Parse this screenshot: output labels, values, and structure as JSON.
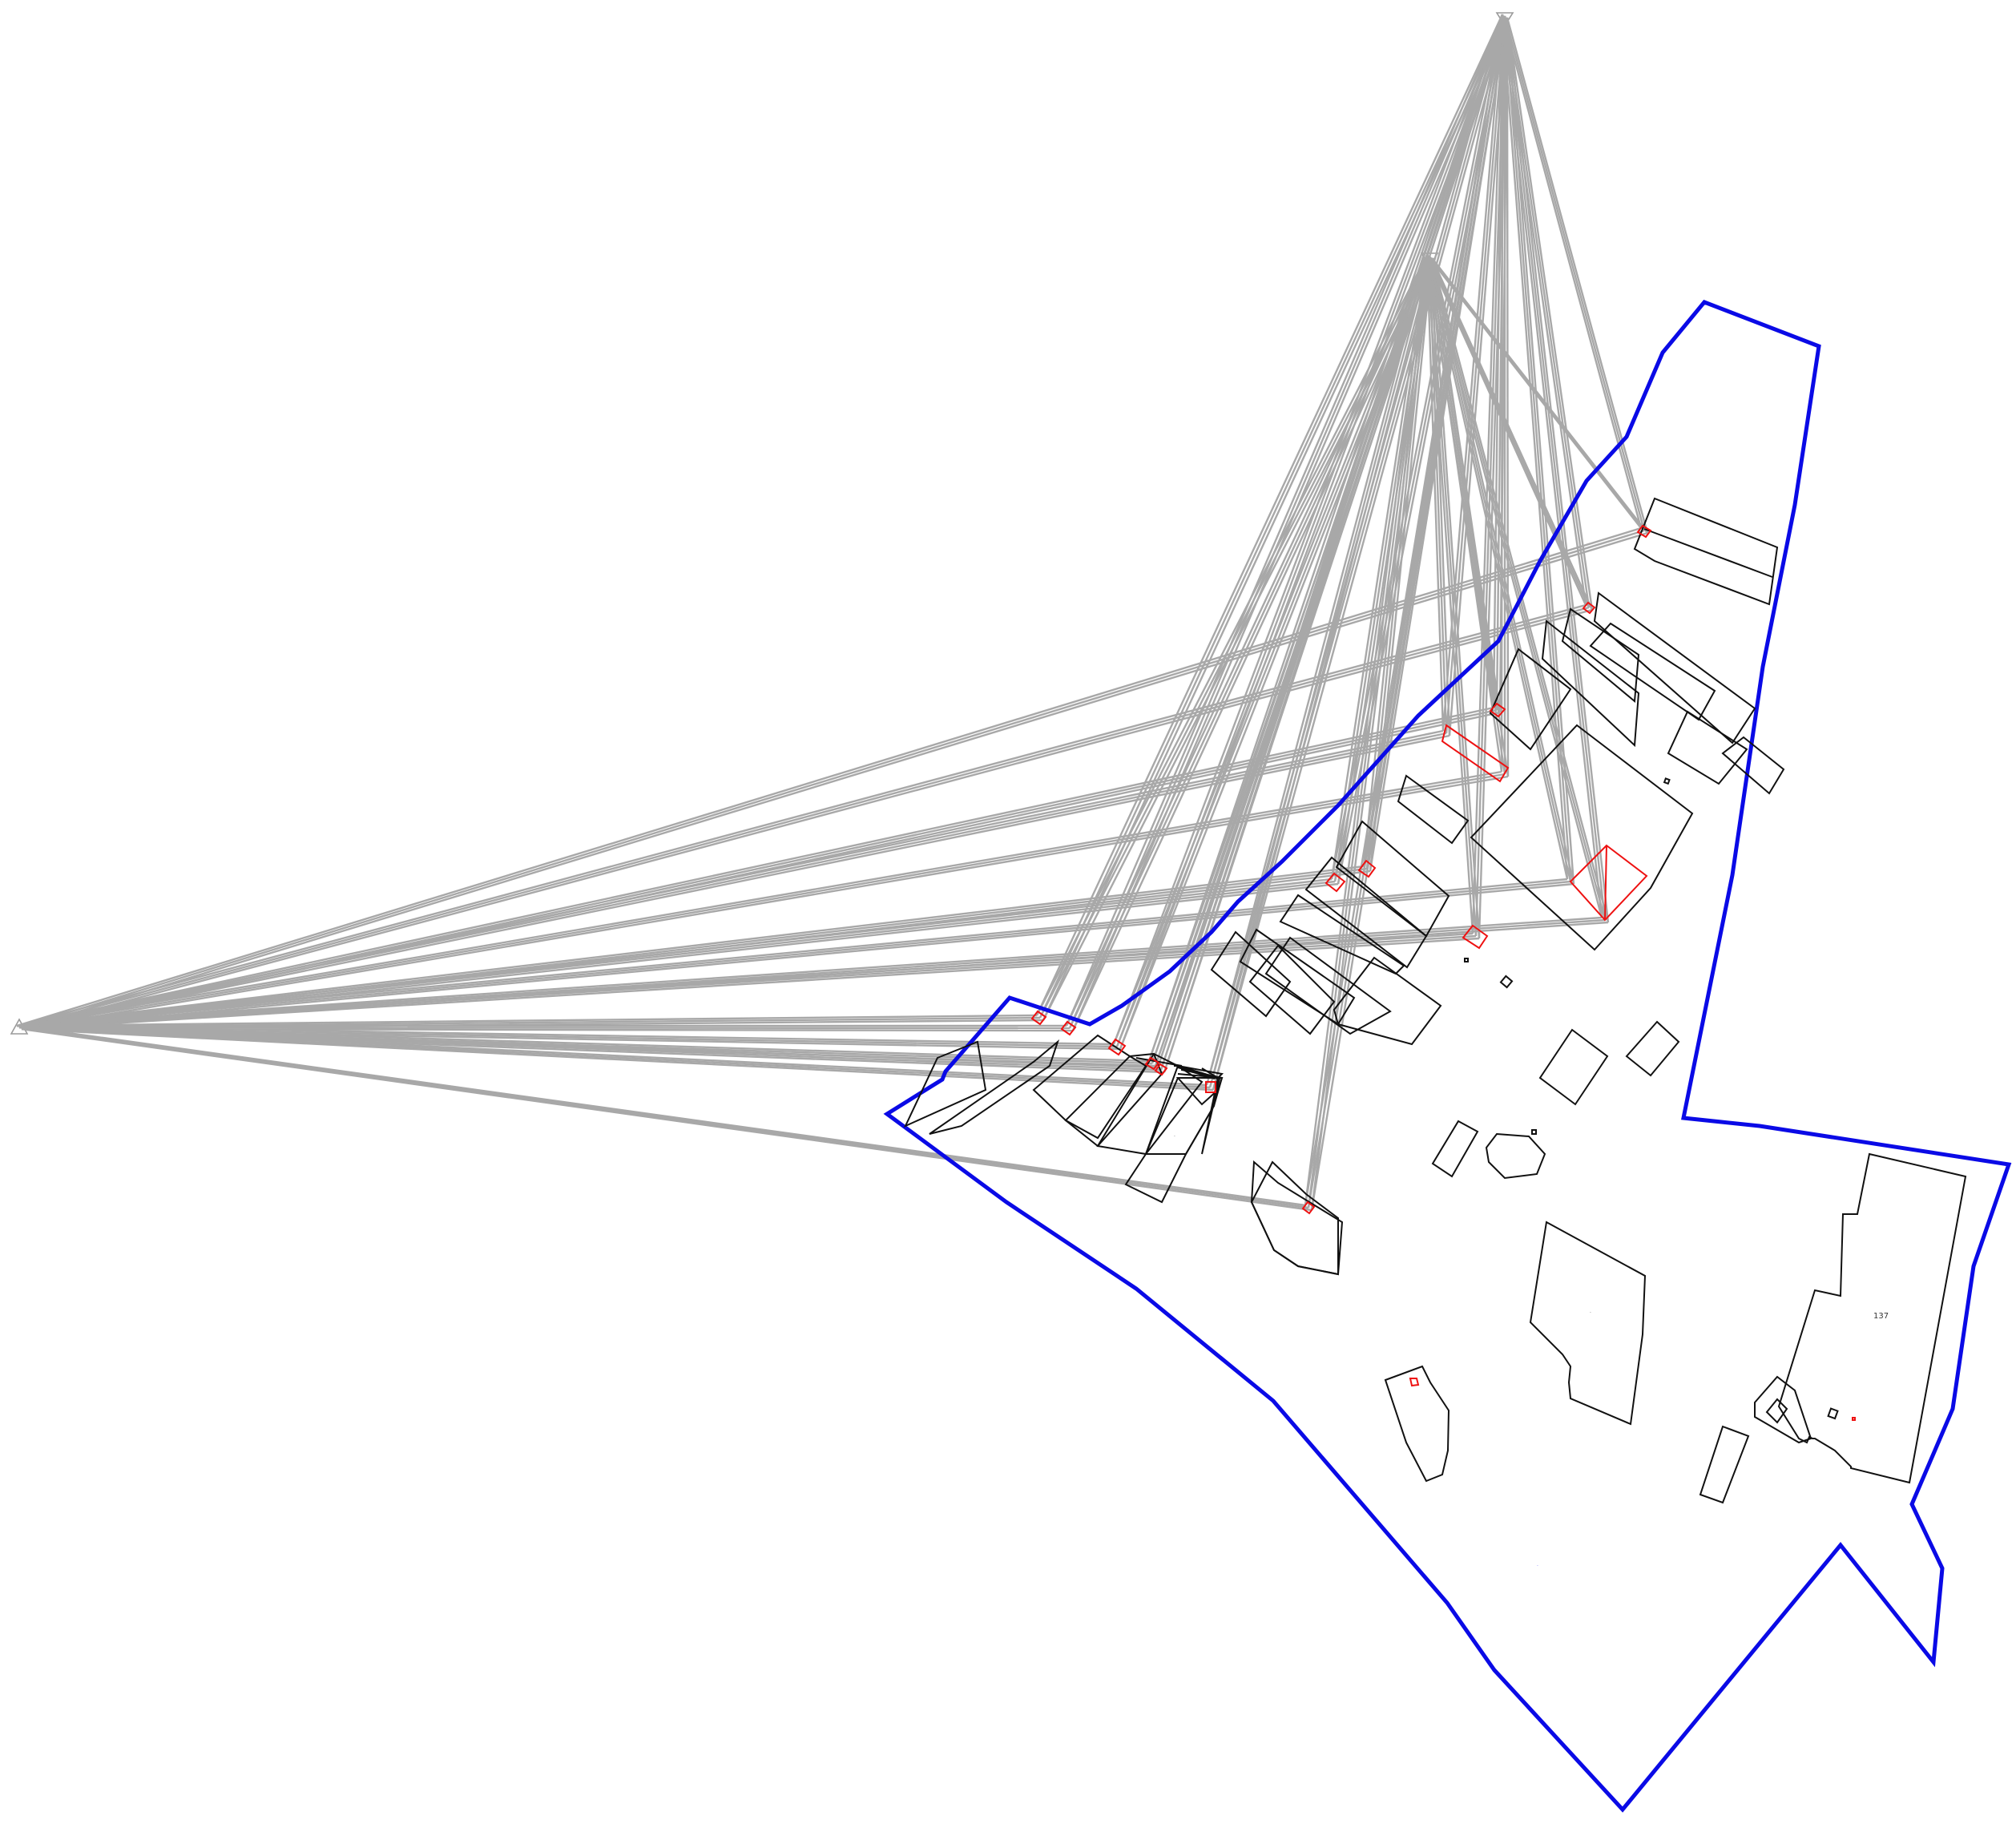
{
  "colors": {
    "boundary": "#0a0ae6",
    "buildings": "#111111",
    "surveyed_objects": "#ee1111",
    "sight_lines": "#a8a8a8",
    "stations": "#9a9a9a",
    "parcel_id": "#5a5aff"
  },
  "labels": {
    "building_big": "137",
    "building_small_1": "·",
    "building_small_2": "·",
    "parcel_id": "·"
  }
}
